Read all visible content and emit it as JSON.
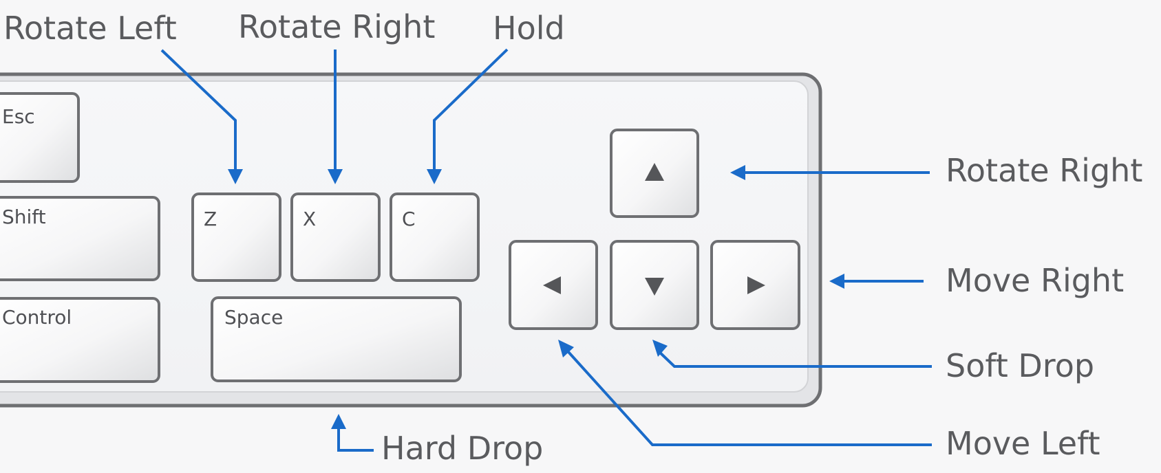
{
  "callouts": {
    "rotate_left_top": "Rotate Left",
    "rotate_right_top": "Rotate Right",
    "hold": "Hold",
    "rotate_right_side": "Rotate Right",
    "move_right": "Move Right",
    "soft_drop": "Soft Drop",
    "move_left": "Move Left",
    "hard_drop": "Hard Drop"
  },
  "keys": {
    "esc": "Esc",
    "shift": "Shift",
    "control": "Control",
    "z": "Z",
    "x": "X",
    "c": "C",
    "space": "Space"
  },
  "colors": {
    "accent": "#1a6bc9",
    "label": "#5a5b5e",
    "key_border": "#6e6f72",
    "background": "#f7f7f8"
  },
  "icons": {
    "up": "triangle-up-icon",
    "down": "triangle-down-icon",
    "left": "triangle-left-icon",
    "right": "triangle-right-icon"
  }
}
